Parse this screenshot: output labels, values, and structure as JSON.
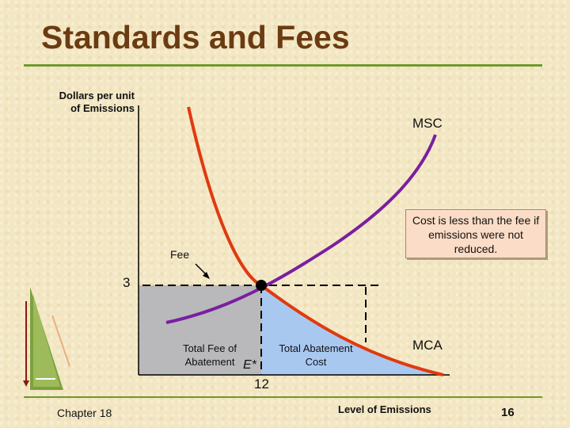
{
  "slide": {
    "title": "Standards and Fees",
    "chapter": "Chapter 18",
    "page_number": "16"
  },
  "diagram": {
    "y_axis_label": "Dollars per unit of Emissions",
    "x_axis_label": "Level of Emissions",
    "curves": {
      "msc_label": "MSC",
      "mca_label": "MCA"
    },
    "fee_label": "Fee",
    "fee_value": "3",
    "emissions_value": "12",
    "equilibrium_label": "E*",
    "regions": {
      "total_fee_label": "Total Fee of Abatement",
      "total_abatement_cost_label": "Total Abatement Cost"
    },
    "note": "Cost is less than the fee if emissions were not reduced.",
    "colors": {
      "msc": "#7a1fa0",
      "mca": "#e03a10",
      "fee_area": "#b9b9bb",
      "abatement_area": "#a8c8f0",
      "title": "#6b3b12",
      "rule": "#6e9a2e"
    }
  }
}
